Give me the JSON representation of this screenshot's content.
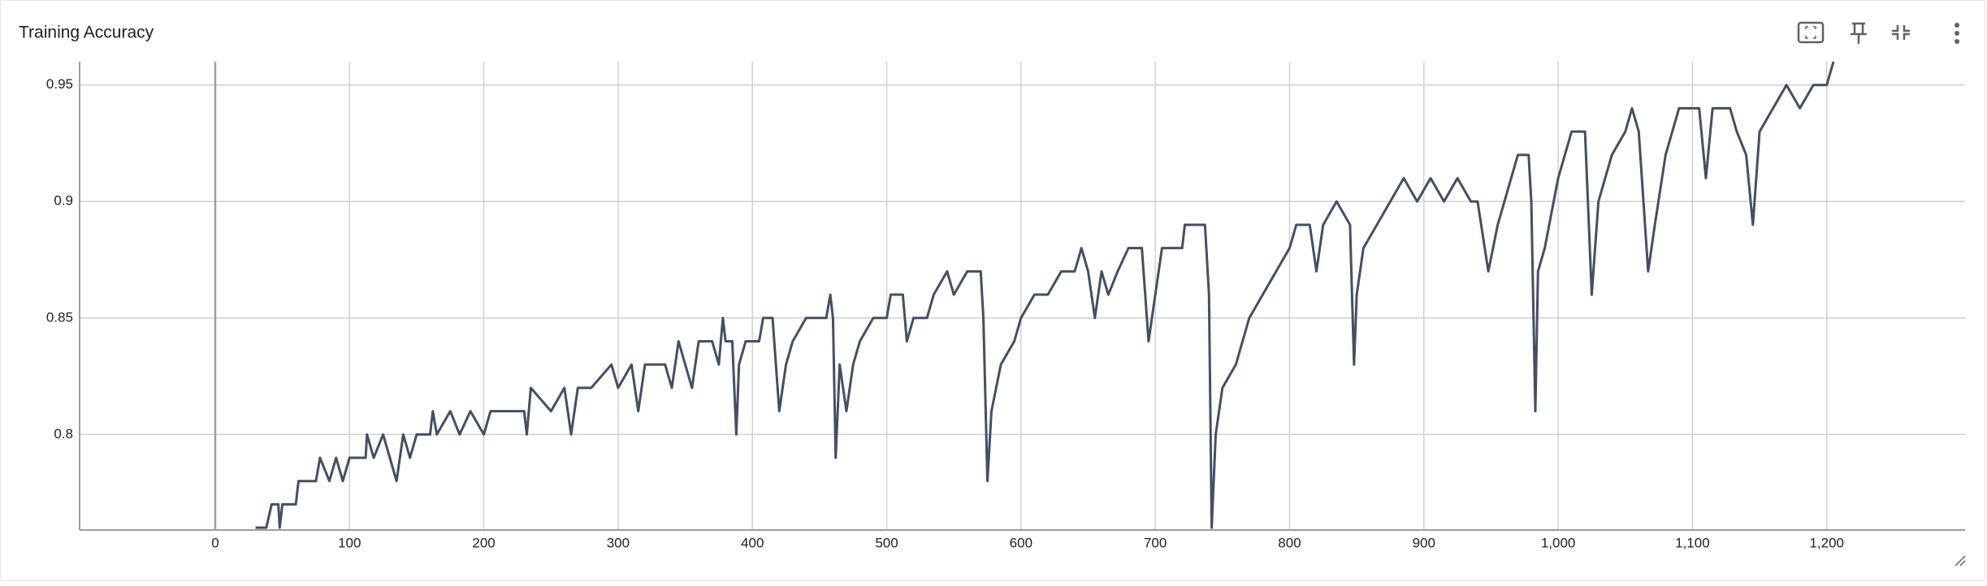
{
  "chart_data": {
    "type": "line",
    "title": "Training Accuracy",
    "color": "#425066",
    "grid": true,
    "xlim": [
      -101,
      1303
    ],
    "ylim": [
      0.759,
      0.96
    ],
    "xticks": [
      0,
      100,
      200,
      300,
      400,
      500,
      600,
      700,
      800,
      900,
      {
        "value": 1000,
        "label": "1,000"
      },
      {
        "value": 1100,
        "label": "1,100"
      },
      {
        "value": 1200,
        "label": "1,200"
      }
    ],
    "yticks": [
      0.8,
      0.85,
      0.9,
      0.95
    ],
    "x": [
      30,
      38,
      42,
      47,
      48,
      50,
      60,
      62,
      75,
      78,
      85,
      90,
      95,
      100,
      112,
      113,
      118,
      125,
      135,
      140,
      145,
      150,
      160,
      162,
      165,
      175,
      182,
      190,
      200,
      205,
      230,
      232,
      235,
      250,
      260,
      265,
      270,
      280,
      295,
      300,
      310,
      315,
      320,
      335,
      340,
      345,
      355,
      360,
      370,
      375,
      378,
      380,
      385,
      388,
      390,
      395,
      405,
      408,
      415,
      420,
      425,
      430,
      440,
      455,
      458,
      460,
      462,
      465,
      470,
      475,
      480,
      490,
      500,
      503,
      512,
      515,
      520,
      530,
      535,
      545,
      550,
      560,
      570,
      572,
      575,
      578,
      585,
      595,
      600,
      610,
      620,
      630,
      640,
      645,
      650,
      655,
      660,
      665,
      672,
      680,
      690,
      695,
      700,
      705,
      720,
      722,
      730,
      737,
      740,
      742,
      745,
      750,
      760,
      770,
      780,
      790,
      800,
      805,
      815,
      820,
      825,
      835,
      845,
      848,
      850,
      855,
      865,
      875,
      885,
      895,
      905,
      915,
      925,
      935,
      940,
      948,
      955,
      965,
      970,
      978,
      980,
      983,
      985,
      990,
      1000,
      1010,
      1020,
      1025,
      1030,
      1040,
      1050,
      1055,
      1060,
      1067,
      1072,
      1080,
      1090,
      1105,
      1110,
      1115,
      1128,
      1133,
      1140,
      1145,
      1150,
      1160,
      1170,
      1180,
      1190,
      1200,
      1205
    ],
    "values": [
      0.76,
      0.76,
      0.77,
      0.77,
      0.76,
      0.77,
      0.77,
      0.78,
      0.78,
      0.79,
      0.78,
      0.79,
      0.78,
      0.79,
      0.79,
      0.8,
      0.79,
      0.8,
      0.78,
      0.8,
      0.79,
      0.8,
      0.8,
      0.81,
      0.8,
      0.81,
      0.8,
      0.81,
      0.8,
      0.81,
      0.81,
      0.8,
      0.82,
      0.81,
      0.82,
      0.8,
      0.82,
      0.82,
      0.83,
      0.82,
      0.83,
      0.81,
      0.83,
      0.83,
      0.82,
      0.84,
      0.82,
      0.84,
      0.84,
      0.83,
      0.85,
      0.84,
      0.84,
      0.8,
      0.83,
      0.84,
      0.84,
      0.85,
      0.85,
      0.81,
      0.83,
      0.84,
      0.85,
      0.85,
      0.86,
      0.85,
      0.79,
      0.83,
      0.81,
      0.83,
      0.84,
      0.85,
      0.85,
      0.86,
      0.86,
      0.84,
      0.85,
      0.85,
      0.86,
      0.87,
      0.86,
      0.87,
      0.87,
      0.85,
      0.78,
      0.81,
      0.83,
      0.84,
      0.85,
      0.86,
      0.86,
      0.87,
      0.87,
      0.88,
      0.87,
      0.85,
      0.87,
      0.86,
      0.87,
      0.88,
      0.88,
      0.84,
      0.86,
      0.88,
      0.88,
      0.89,
      0.89,
      0.89,
      0.86,
      0.76,
      0.8,
      0.82,
      0.83,
      0.85,
      0.86,
      0.87,
      0.88,
      0.89,
      0.89,
      0.87,
      0.89,
      0.9,
      0.89,
      0.83,
      0.86,
      0.88,
      0.89,
      0.9,
      0.91,
      0.9,
      0.91,
      0.9,
      0.91,
      0.9,
      0.9,
      0.87,
      0.89,
      0.91,
      0.92,
      0.92,
      0.9,
      0.81,
      0.87,
      0.88,
      0.91,
      0.93,
      0.93,
      0.86,
      0.9,
      0.92,
      0.93,
      0.94,
      0.93,
      0.87,
      0.89,
      0.92,
      0.94,
      0.94,
      0.91,
      0.94,
      0.94,
      0.93,
      0.92,
      0.89,
      0.93,
      0.94,
      0.95,
      0.94,
      0.95,
      0.95,
      0.96
    ]
  }
}
